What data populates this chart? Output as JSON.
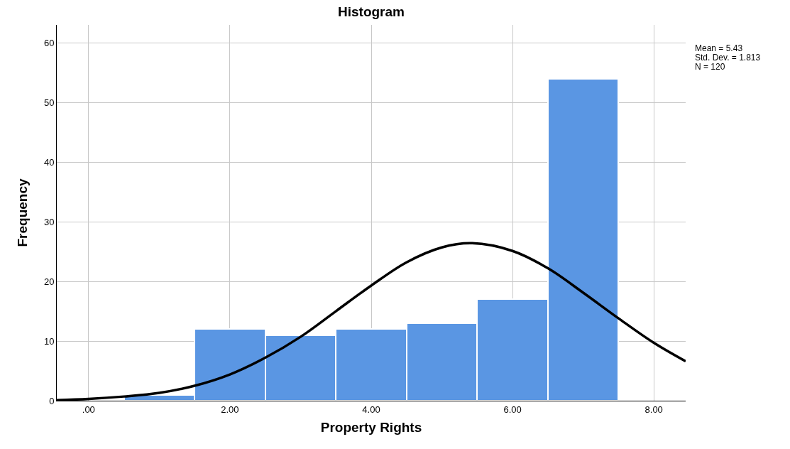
{
  "chart_data": {
    "type": "histogram",
    "title": "Histogram",
    "xlabel": "Property Rights",
    "ylabel": "Frequency",
    "bins": [
      0.5,
      1.5,
      2.5,
      3.5,
      4.5,
      5.5,
      6.5,
      7.5
    ],
    "values": [
      1,
      12,
      11,
      12,
      13,
      17,
      54
    ],
    "color": "#5a96e3",
    "series": [
      {
        "type": "line",
        "color": "#000000",
        "x": [
          -0.45,
          0,
          0.5,
          1,
          1.5,
          2,
          2.5,
          3,
          3.5,
          4,
          4.5,
          5,
          5.43,
          6,
          6.5,
          7,
          7.5,
          8,
          8.45
        ],
        "values": [
          0.1,
          0.3,
          0.7,
          1.3,
          2.5,
          4.4,
          7.2,
          10.7,
          15.0,
          19.3,
          23.2,
          25.7,
          26.4,
          25.1,
          22.2,
          18.1,
          13.8,
          9.7,
          6.6
        ]
      }
    ],
    "xlim": [
      -0.45,
      8.45
    ],
    "xticks": [
      {
        "value": 0,
        "label": ".00"
      },
      {
        "value": 2,
        "label": "2.00"
      },
      {
        "value": 4,
        "label": "4.00"
      },
      {
        "value": 6,
        "label": "6.00"
      },
      {
        "value": 8,
        "label": "8.00"
      }
    ],
    "ylim": [
      0,
      63
    ],
    "yticks": [
      0,
      10,
      20,
      30,
      40,
      50,
      60
    ],
    "grid": true,
    "marker": "none",
    "annotations": [
      "Mean = 5.43",
      "Std. Dev. = 1.813",
      "N = 120"
    ]
  }
}
